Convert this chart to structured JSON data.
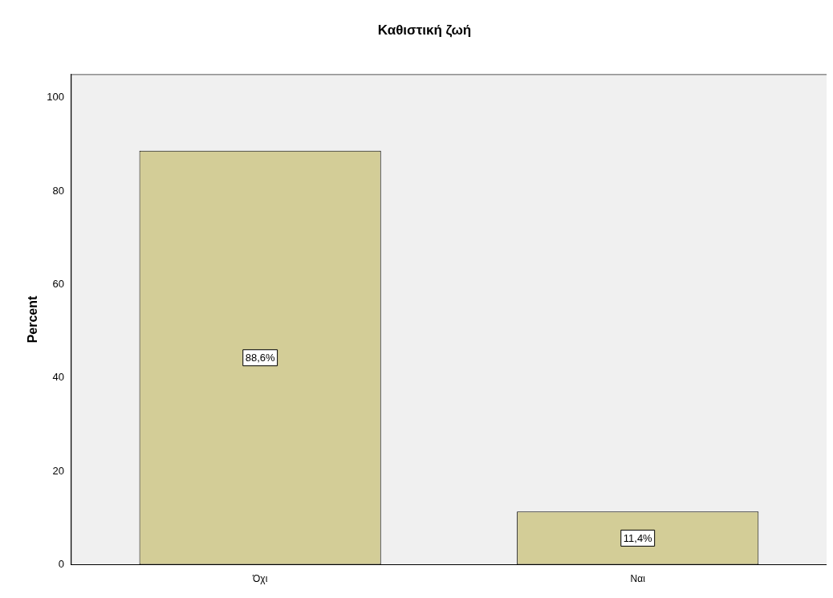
{
  "chart_data": {
    "type": "bar",
    "title": "Καθιστική ζωή",
    "ylabel": "Percent",
    "categories": [
      "Όχι",
      "Ναι"
    ],
    "values": [
      88.6,
      11.4
    ],
    "value_labels": [
      "88,6%",
      "11,4%"
    ],
    "color": "#d3cd97",
    "ylim": [
      0,
      105
    ],
    "yticks": [
      0,
      20,
      40,
      60,
      80,
      100
    ]
  }
}
